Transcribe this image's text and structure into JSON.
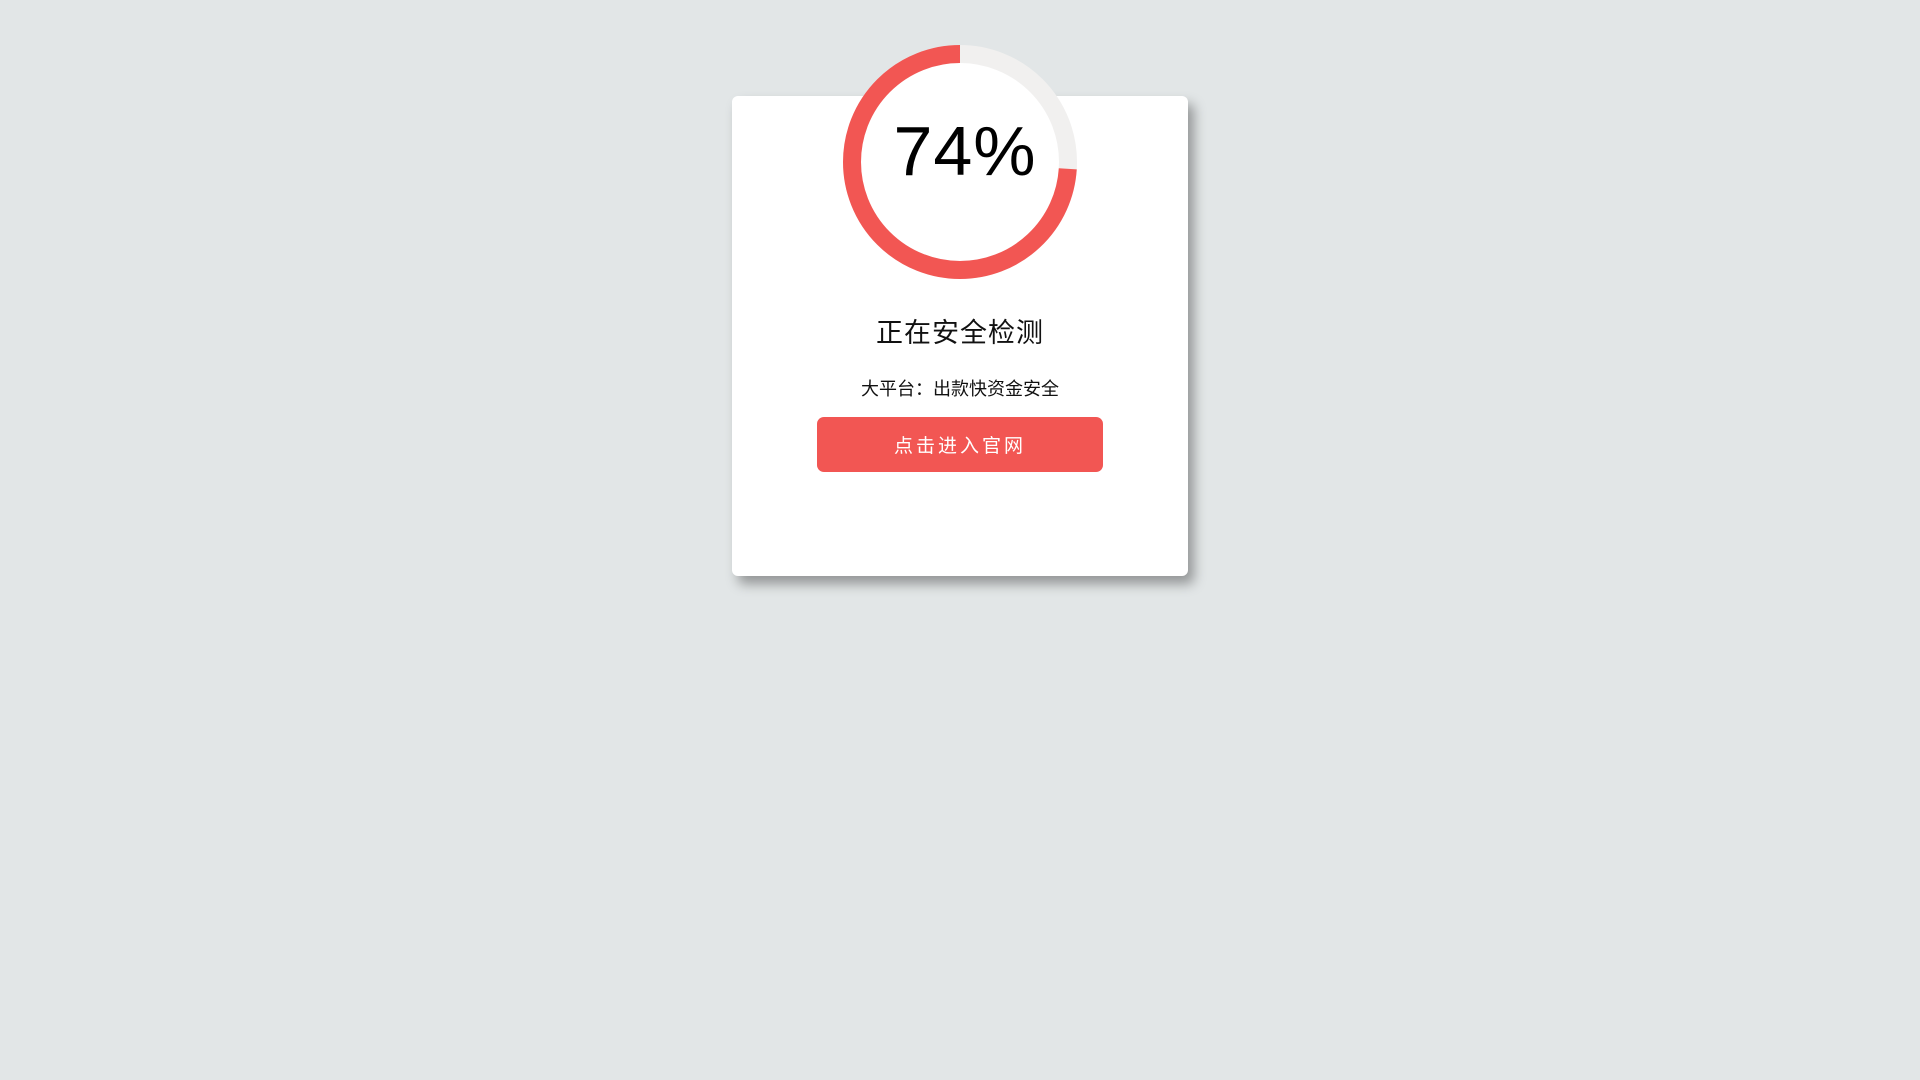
{
  "progress": {
    "value": 74,
    "label": "74%",
    "color": "#f25653",
    "track_color": "#f1f0ef"
  },
  "title": "正在安全检测",
  "subtitle": "大平台：出款快资金安全",
  "button": {
    "label": "点击进入官网",
    "color": "#f25653"
  },
  "background_color": "#e2e6e7"
}
